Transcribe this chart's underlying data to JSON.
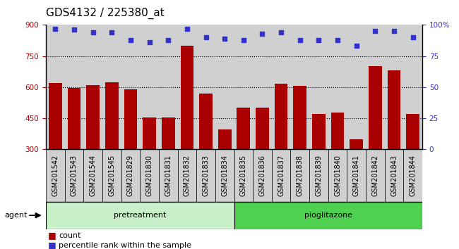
{
  "title": "GDS4132 / 225380_at",
  "categories": [
    "GSM201542",
    "GSM201543",
    "GSM201544",
    "GSM201545",
    "GSM201829",
    "GSM201830",
    "GSM201831",
    "GSM201832",
    "GSM201833",
    "GSM201834",
    "GSM201835",
    "GSM201836",
    "GSM201837",
    "GSM201838",
    "GSM201839",
    "GSM201840",
    "GSM201841",
    "GSM201842",
    "GSM201843",
    "GSM201844"
  ],
  "bar_values": [
    620,
    595,
    610,
    625,
    590,
    455,
    453,
    800,
    570,
    395,
    500,
    500,
    615,
    605,
    470,
    478,
    350,
    700,
    680,
    470
  ],
  "percentile_values": [
    97,
    96,
    94,
    94,
    88,
    86,
    88,
    97,
    90,
    89,
    88,
    93,
    94,
    88,
    88,
    88,
    83,
    95,
    95,
    90
  ],
  "bar_color": "#aa0000",
  "percentile_color": "#3333cc",
  "ylim_left": [
    300,
    900
  ],
  "ylim_right": [
    0,
    100
  ],
  "yticks_left": [
    300,
    450,
    600,
    750,
    900
  ],
  "yticks_right": [
    0,
    25,
    50,
    75,
    100
  ],
  "hgrid_values": [
    450,
    600,
    750
  ],
  "agent_label": "agent",
  "pretreatment_label": "pretreatment",
  "pioglitazone_label": "pioglitazone",
  "n_pretreatment": 10,
  "n_pioglitazone": 10,
  "legend_count": "count",
  "legend_percentile": "percentile rank within the sample",
  "pretreatment_color": "#c8f0c8",
  "pioglitazone_color": "#50d050",
  "cell_bg_color": "#d0d0d0",
  "plot_bg_color": "#ffffff",
  "title_fontsize": 11,
  "tick_fontsize": 7.5,
  "cell_fontsize": 7,
  "agent_fontsize": 8,
  "legend_fontsize": 8
}
